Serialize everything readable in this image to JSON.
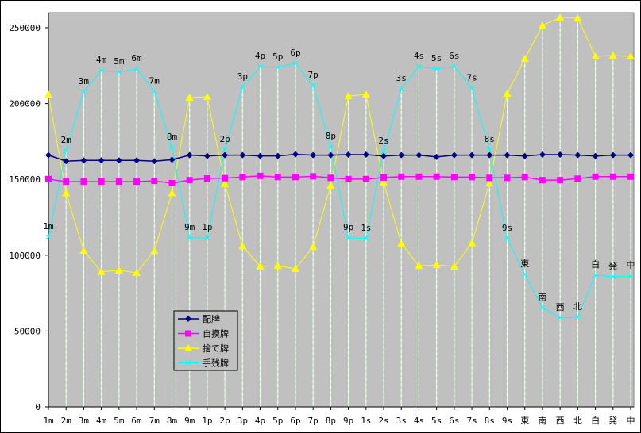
{
  "chart_data": {
    "type": "line",
    "title": "",
    "xlabel": "",
    "ylabel": "",
    "ylim": [
      0,
      250000
    ],
    "yticks": [
      "0",
      "50000",
      "100000",
      "150000",
      "200000",
      "250000"
    ],
    "ytick_values": [
      0,
      50000,
      100000,
      150000,
      200000,
      250000
    ],
    "categories": [
      "1m",
      "2m",
      "3m",
      "4m",
      "5m",
      "6m",
      "7m",
      "8m",
      "9m",
      "1p",
      "2p",
      "3p",
      "4p",
      "5p",
      "6p",
      "7p",
      "8p",
      "9p",
      "1s",
      "2s",
      "3s",
      "4s",
      "5s",
      "6s",
      "7s",
      "8s",
      "9s",
      "東",
      "南",
      "西",
      "北",
      "白",
      "発",
      "中"
    ],
    "legend_position": "bottom-left",
    "background": "#c0c0c0",
    "series": [
      {
        "name": "配牌",
        "color": "#000080",
        "marker": "diamond",
        "values": [
          166000,
          162000,
          162500,
          162500,
          162500,
          162500,
          162000,
          163000,
          166000,
          165500,
          166000,
          166000,
          165500,
          165500,
          166500,
          166000,
          166000,
          166300,
          166300,
          165400,
          166000,
          166000,
          164800,
          166000,
          166000,
          166000,
          166000,
          165400,
          166300,
          166300,
          166000,
          165400,
          166000,
          166000
        ]
      },
      {
        "name": "自摸牌",
        "color": "#ff00ff",
        "marker": "square",
        "values": [
          150200,
          148500,
          148500,
          148500,
          148500,
          148500,
          149000,
          147500,
          149500,
          150600,
          150800,
          151500,
          152300,
          151500,
          151500,
          152000,
          151000,
          150200,
          150200,
          151200,
          151800,
          151800,
          151800,
          151500,
          151500,
          151000,
          151000,
          151500,
          149500,
          149500,
          150500,
          151800,
          151800,
          151800
        ]
      },
      {
        "name": "捨て牌",
        "color": "#ffff00",
        "marker": "triangle",
        "values": [
          206000,
          141000,
          103000,
          89000,
          90000,
          88400,
          103000,
          141000,
          204000,
          204500,
          147000,
          106000,
          92600,
          93000,
          91000,
          105600,
          146000,
          205000,
          206000,
          148000,
          107700,
          93000,
          93600,
          92600,
          108000,
          147500,
          206600,
          229600,
          251500,
          256800,
          256300,
          231200,
          231700,
          231200
        ]
      },
      {
        "name": "手残牌",
        "color": "#00ffff",
        "marker": "x",
        "values": [
          112000,
          169000,
          207600,
          221800,
          220700,
          222800,
          208000,
          171000,
          111400,
          111400,
          169500,
          210800,
          224400,
          223800,
          226500,
          211800,
          171500,
          111400,
          111000,
          168400,
          209700,
          224400,
          222800,
          224400,
          210000,
          169500,
          111000,
          87300,
          65400,
          58600,
          59100,
          86800,
          85800,
          86300
        ]
      }
    ],
    "point_labels_series": "手残牌"
  }
}
